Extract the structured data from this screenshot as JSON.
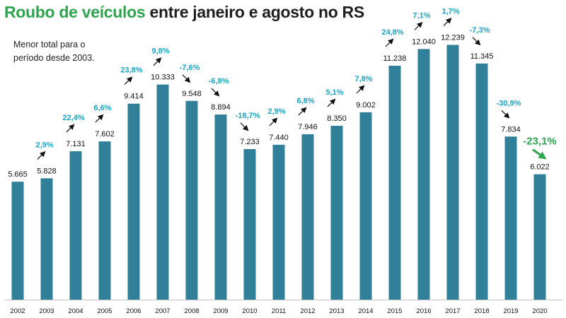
{
  "title": {
    "part1": "Roubo de veículos",
    "part2": " entre janeiro e agosto no RS"
  },
  "note": "Menor total para o período desde 2003.",
  "colors": {
    "bar": "#2f8098",
    "pct": "#1aa3c4",
    "highlight": "#2ea44f",
    "title_accent": "#2ea44f"
  },
  "chart_data": {
    "type": "bar",
    "title": "Roubo de veículos entre janeiro e agosto no RS",
    "xlabel": "",
    "ylabel": "",
    "ylim": [
      0,
      12800
    ],
    "grid": false,
    "categories": [
      "2002",
      "2003",
      "2004",
      "2005",
      "2006",
      "2007",
      "2008",
      "2009",
      "2010",
      "2011",
      "2012",
      "2013",
      "2014",
      "2015",
      "2016",
      "2017",
      "2018",
      "2019",
      "2020"
    ],
    "values": [
      5665,
      5828,
      7131,
      7602,
      9414,
      10333,
      9548,
      8894,
      7233,
      7440,
      7946,
      8350,
      9002,
      11238,
      12040,
      12239,
      11345,
      7834,
      6022
    ],
    "value_labels": [
      "5.665",
      "5.828",
      "7.131",
      "7.602",
      "9.414",
      "10.333",
      "9.548",
      "8.894",
      "7.233",
      "7.440",
      "7.946",
      "8.350",
      "9.002",
      "11.238",
      "12.040",
      "12.239",
      "11.345",
      "7.834",
      "6.022"
    ],
    "pct_changes": [
      null,
      "2,9%",
      "22,4%",
      "6,6%",
      "23,8%",
      "9,8%",
      "-7,6%",
      "-6,8%",
      "-18,7%",
      "2,9%",
      "6,8%",
      "5,1%",
      "7,8%",
      "24,8%",
      "7,1%",
      "1,7%",
      "-7,3%",
      "-30,9%",
      "-23,1%"
    ],
    "highlight_index": 18
  }
}
